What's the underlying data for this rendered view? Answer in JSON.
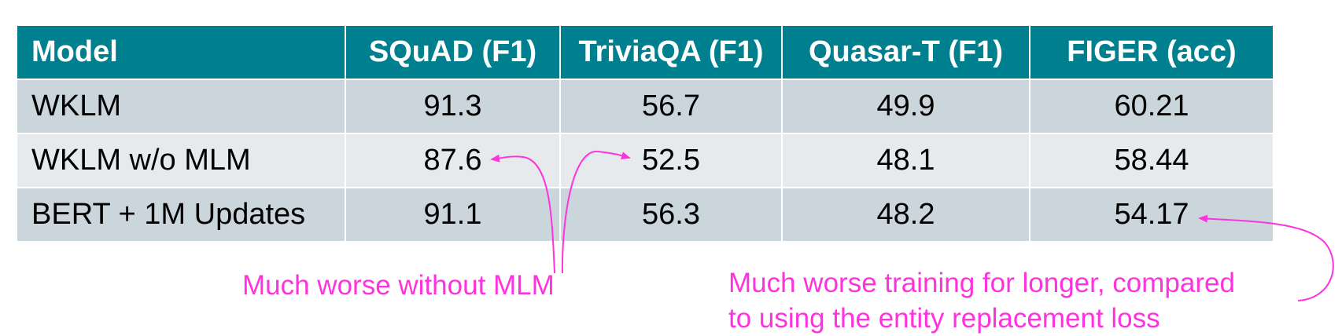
{
  "colors": {
    "header_background": "#00808f",
    "row_dark": "#cbd5dc",
    "row_light": "#e6eaed",
    "annotation": "#ff33dd"
  },
  "table": {
    "headers": [
      "Model",
      "SQuAD (F1)",
      "TriviaQA (F1)",
      "Quasar-T (F1)",
      "FIGER (acc)"
    ],
    "rows": [
      [
        "WKLM",
        "91.3",
        "56.7",
        "49.9",
        "60.21"
      ],
      [
        "WKLM w/o MLM",
        "87.6",
        "52.5",
        "48.1",
        "58.44"
      ],
      [
        "BERT + 1M Updates",
        "91.1",
        "56.3",
        "48.2",
        "54.17"
      ]
    ]
  },
  "annotations": {
    "without_mlm": "Much worse without MLM",
    "training_longer_line1": "Much worse training for longer, compared",
    "training_longer_line2": "to using the entity replacement loss"
  }
}
